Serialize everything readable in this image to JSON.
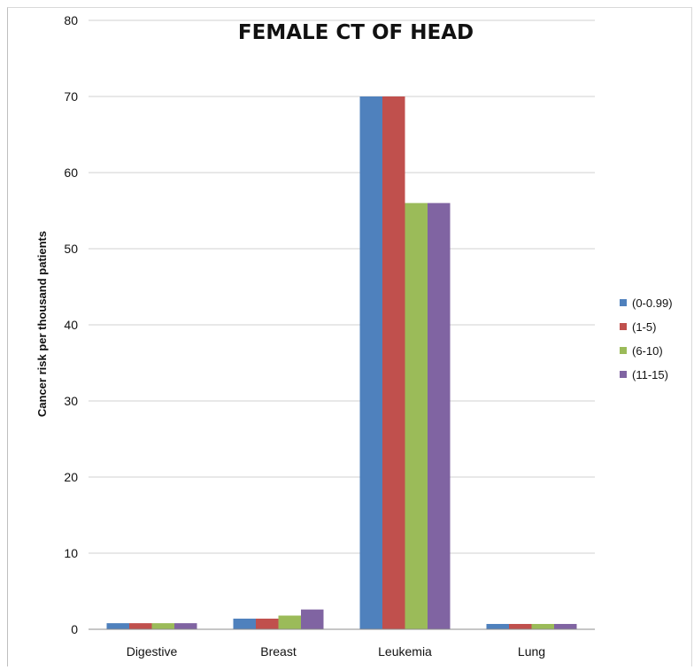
{
  "chart_data": {
    "type": "bar",
    "title": "FEMALE CT OF HEAD",
    "xlabel": "",
    "ylabel": "Cancer risk per thousand patients",
    "categories": [
      "Digestive",
      "Breast",
      "Leukemia",
      "Lung"
    ],
    "series": [
      {
        "name": "(0-0.99)",
        "color": "#4f81bd",
        "values": [
          0.8,
          1.4,
          70,
          0.7
        ]
      },
      {
        "name": "(1-5)",
        "color": "#c0504d",
        "values": [
          0.8,
          1.4,
          70,
          0.7
        ]
      },
      {
        "name": "(6-10)",
        "color": "#9bbb59",
        "values": [
          0.8,
          1.8,
          56,
          0.7
        ]
      },
      {
        "name": "(11-15)",
        "color": "#8064a2",
        "values": [
          0.8,
          2.6,
          56,
          0.7
        ]
      }
    ],
    "ylim": [
      0,
      80
    ],
    "yticks": [
      0,
      10,
      20,
      30,
      40,
      50,
      60,
      70,
      80
    ],
    "grid": true,
    "legend_position": "right"
  }
}
